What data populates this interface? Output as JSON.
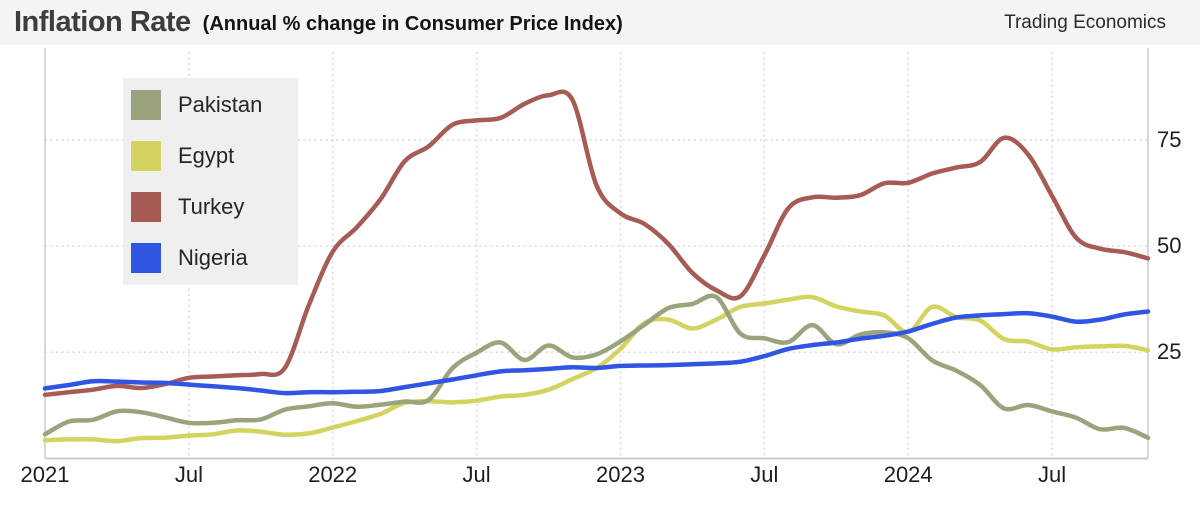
{
  "header": {
    "title": "Inflation Rate",
    "subtitle": "(Annual % change in Consumer Price Index)",
    "credit": "Trading Economics"
  },
  "legend": {
    "position": "top-left",
    "items": [
      {
        "label": "Pakistan",
        "color": "#99a47c"
      },
      {
        "label": "Egypt",
        "color": "#d5d35f"
      },
      {
        "label": "Turkey",
        "color": "#a65c55"
      },
      {
        "label": "Nigeria",
        "color": "#3055e2"
      }
    ]
  },
  "chart_data": {
    "type": "line",
    "title": "Inflation Rate",
    "subtitle": "(Annual % change in Consumer Price Index)",
    "xlabel": "",
    "ylabel": "",
    "grid": "dotted",
    "legend_position": "top-left",
    "y_axis_side": "right",
    "y_ticks": [
      25,
      50,
      75
    ],
    "ylim": [
      0,
      95
    ],
    "x": [
      "2021-01",
      "2021-02",
      "2021-03",
      "2021-04",
      "2021-05",
      "2021-06",
      "2021-07",
      "2021-08",
      "2021-09",
      "2021-10",
      "2021-11",
      "2021-12",
      "2022-01",
      "2022-02",
      "2022-03",
      "2022-04",
      "2022-05",
      "2022-06",
      "2022-07",
      "2022-08",
      "2022-09",
      "2022-10",
      "2022-11",
      "2022-12",
      "2023-01",
      "2023-02",
      "2023-03",
      "2023-04",
      "2023-05",
      "2023-06",
      "2023-07",
      "2023-08",
      "2023-09",
      "2023-10",
      "2023-11",
      "2023-12",
      "2024-01",
      "2024-02",
      "2024-03",
      "2024-04",
      "2024-05",
      "2024-06",
      "2024-07",
      "2024-08",
      "2024-09",
      "2024-10",
      "2024-11"
    ],
    "x_tick_labels": [
      {
        "index": 0,
        "label": "2021"
      },
      {
        "index": 6,
        "label": "Jul"
      },
      {
        "index": 12,
        "label": "2022"
      },
      {
        "index": 18,
        "label": "Jul"
      },
      {
        "index": 24,
        "label": "2023"
      },
      {
        "index": 30,
        "label": "Jul"
      },
      {
        "index": 36,
        "label": "2024"
      },
      {
        "index": 42,
        "label": "Jul"
      }
    ],
    "series": [
      {
        "name": "Turkey",
        "color": "#a65c55",
        "values": [
          15.0,
          15.6,
          16.2,
          17.1,
          16.6,
          17.5,
          19.0,
          19.3,
          19.6,
          19.9,
          21.3,
          36.1,
          48.7,
          54.4,
          61.1,
          70.0,
          73.5,
          78.6,
          79.6,
          80.2,
          83.5,
          85.5,
          84.4,
          64.3,
          57.7,
          55.2,
          50.5,
          43.7,
          39.6,
          38.2,
          47.8,
          58.9,
          61.5,
          61.4,
          62.0,
          64.8,
          64.9,
          67.1,
          68.5,
          69.8,
          75.5,
          71.6,
          61.8,
          52.0,
          49.4,
          48.6,
          47.1
        ]
      },
      {
        "name": "Egypt",
        "color": "#d5d35f",
        "values": [
          4.3,
          4.5,
          4.5,
          4.1,
          4.8,
          4.9,
          5.4,
          5.7,
          6.6,
          6.3,
          5.6,
          5.9,
          7.3,
          8.8,
          10.5,
          13.1,
          13.5,
          13.2,
          13.6,
          14.6,
          15.0,
          16.2,
          18.7,
          21.3,
          25.8,
          31.9,
          32.7,
          30.6,
          32.7,
          35.7,
          36.5,
          37.4,
          38.0,
          35.8,
          34.6,
          33.7,
          29.8,
          35.7,
          33.3,
          32.5,
          28.1,
          27.5,
          25.7,
          26.2,
          26.4,
          26.5,
          25.5
        ]
      },
      {
        "name": "Pakistan",
        "color": "#99a47c",
        "values": [
          5.7,
          8.7,
          9.1,
          11.1,
          10.9,
          9.7,
          8.4,
          8.4,
          9.0,
          9.2,
          11.5,
          12.3,
          13.0,
          12.2,
          12.7,
          13.4,
          13.8,
          21.3,
          24.9,
          27.3,
          23.2,
          26.6,
          23.8,
          24.5,
          27.6,
          31.5,
          35.4,
          36.4,
          38.0,
          29.4,
          28.3,
          27.4,
          31.4,
          26.9,
          29.2,
          29.7,
          28.3,
          23.1,
          20.7,
          17.3,
          11.8,
          12.6,
          11.1,
          9.6,
          6.9,
          7.2,
          4.9
        ]
      },
      {
        "name": "Nigeria",
        "color": "#3055e2",
        "values": [
          16.5,
          17.3,
          18.2,
          18.1,
          17.9,
          17.8,
          17.4,
          17.0,
          16.6,
          16.0,
          15.4,
          15.6,
          15.6,
          15.7,
          15.9,
          16.8,
          17.7,
          18.6,
          19.6,
          20.5,
          20.8,
          21.1,
          21.5,
          21.3,
          21.8,
          21.9,
          22.0,
          22.2,
          22.4,
          22.8,
          24.1,
          25.8,
          26.7,
          27.3,
          28.2,
          28.9,
          29.9,
          31.7,
          33.2,
          33.7,
          34.0,
          34.2,
          33.4,
          32.2,
          32.7,
          33.9,
          34.6
        ]
      }
    ],
    "style": {
      "grid_color": "#d9d9d9",
      "border_color": "#cccccc",
      "header_bg": "#f4f4f4",
      "legend_bg": "#efefef",
      "line_width": 4.5
    }
  }
}
